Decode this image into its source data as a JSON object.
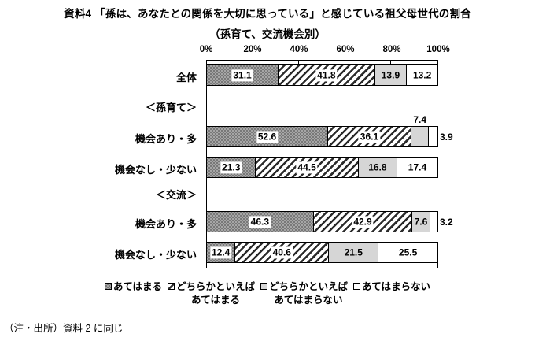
{
  "title": "資料4 「孫は、あなたとの関係を大切に思っている」と感じている祖父母世代の割合",
  "subtitle": "（孫育て、交流機会別）",
  "note": "（注・出所）資料 2 に同じ",
  "axis": {
    "tick_labels": [
      "0%",
      "20%",
      "40%",
      "60%",
      "80%",
      "100%"
    ],
    "tick_values": [
      0,
      20,
      40,
      60,
      80,
      100
    ]
  },
  "legend": [
    {
      "label": "あてはまる",
      "swatch": "checker"
    },
    {
      "label": "どちらかといえば\nあてはまる",
      "swatch": "diagonal"
    },
    {
      "label": "どちらかといえば\nあてはまらない",
      "swatch": "gray"
    },
    {
      "label": "あてはまらない",
      "swatch": "white"
    }
  ],
  "colors": {
    "checker_dark": "#787878",
    "checker_light": "#a6a6a6",
    "hatch_stripe": "#2b2b2b",
    "gray_fill": "#d6d6d6",
    "white_fill": "#ffffff",
    "border": "#000000"
  },
  "chart_data": {
    "type": "bar",
    "stacked": true,
    "orientation": "horizontal",
    "unit": "%",
    "xlim": [
      0,
      100
    ],
    "grid": false,
    "legend_position": "bottom",
    "series_names": [
      "あてはまる",
      "どちらかといえばあてはまる",
      "どちらかといえばあてはまらない",
      "あてはまらない"
    ],
    "rows": [
      {
        "type": "bar",
        "label": "全体",
        "values": [
          31.1,
          41.8,
          13.9,
          13.2
        ],
        "label_pos": [
          "in",
          "in",
          "in",
          "in"
        ]
      },
      {
        "type": "group",
        "label": "＜孫育て＞"
      },
      {
        "type": "bar",
        "label": "機会あり・多",
        "values": [
          52.6,
          36.1,
          7.4,
          3.9
        ],
        "label_pos": [
          "in",
          "in",
          "above",
          "right"
        ]
      },
      {
        "type": "bar",
        "label": "機会なし・少ない",
        "values": [
          21.3,
          44.5,
          16.8,
          17.4
        ],
        "label_pos": [
          "in",
          "in",
          "in",
          "in"
        ]
      },
      {
        "type": "group",
        "label": "＜交流＞"
      },
      {
        "type": "bar",
        "label": "機会あり・多",
        "values": [
          46.3,
          42.9,
          7.6,
          3.2
        ],
        "label_pos": [
          "in",
          "in",
          "in",
          "right"
        ]
      },
      {
        "type": "bar",
        "label": "機会なし・少ない",
        "values": [
          12.4,
          40.6,
          21.5,
          25.5
        ],
        "label_pos": [
          "in",
          "in",
          "in",
          "in"
        ]
      }
    ]
  }
}
